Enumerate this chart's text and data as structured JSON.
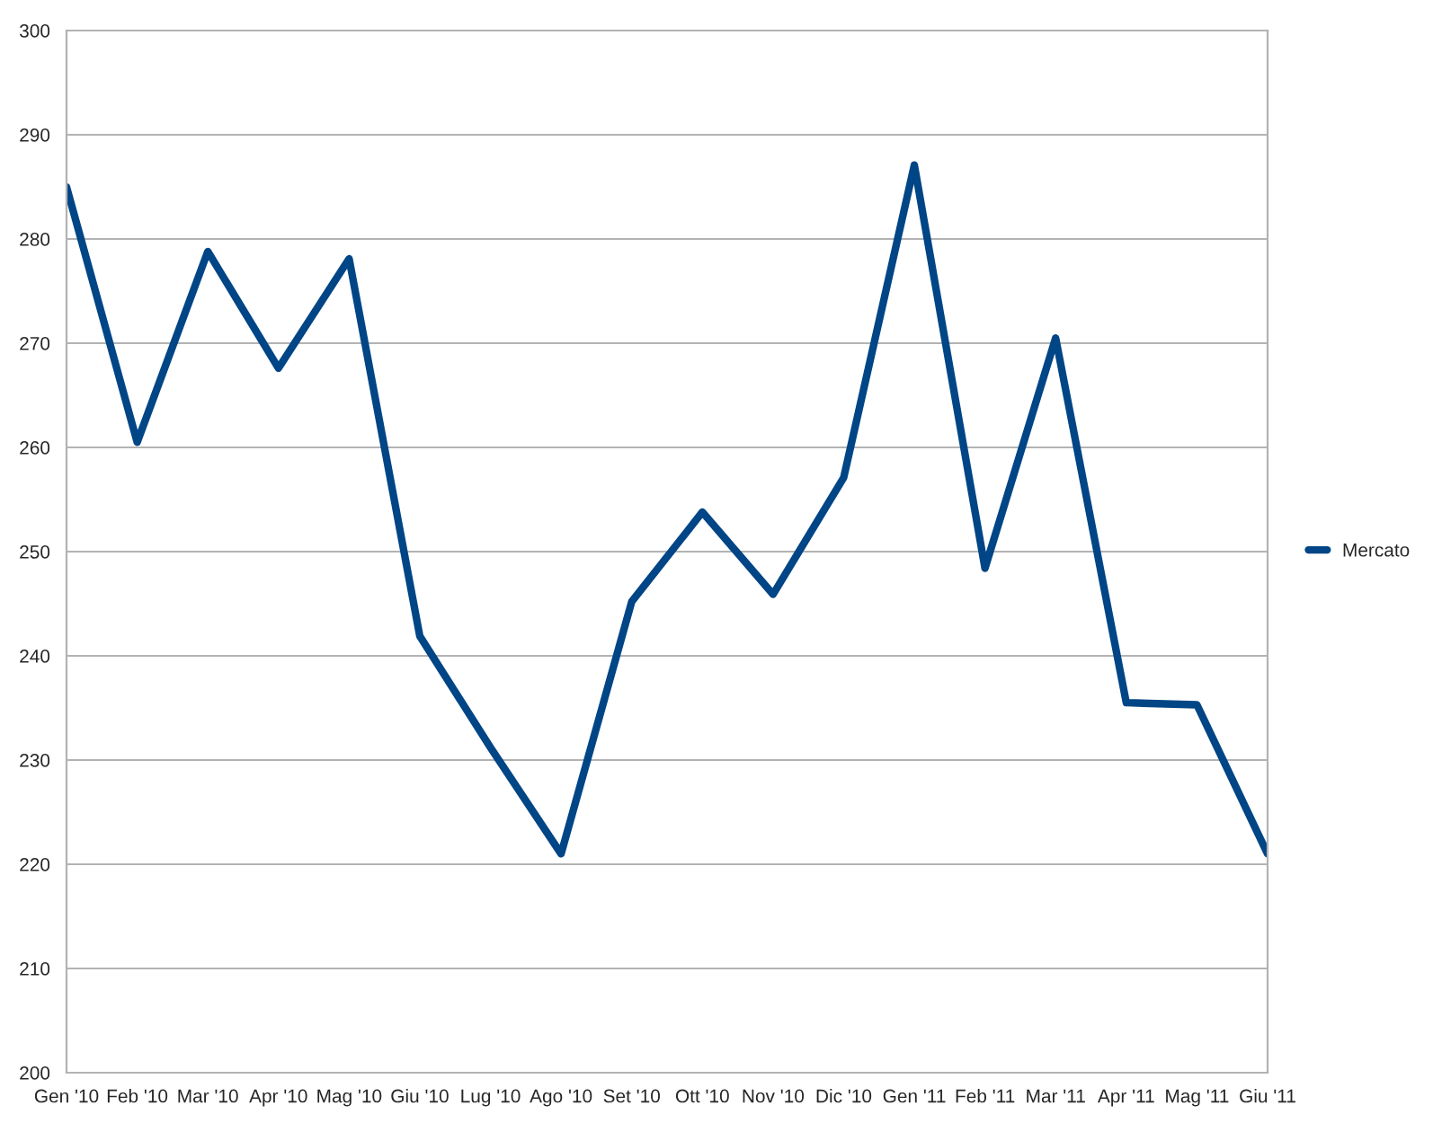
{
  "chart_data": {
    "type": "line",
    "categories": [
      "Gen '10",
      "Feb '10",
      "Mar '10",
      "Apr '10",
      "Mag '10",
      "Giu '10",
      "Lug '10",
      "Ago '10",
      "Set '10",
      "Ott '10",
      "Nov '10",
      "Dic '10",
      "Gen '11",
      "Feb '11",
      "Mar '11",
      "Apr '11",
      "Mag '11",
      "Giu '11"
    ],
    "series": [
      {
        "name": "Mercato",
        "color": "#004586",
        "values": [
          285,
          260.5,
          278.8,
          267.6,
          278.1,
          241.9,
          231.2,
          221,
          245.2,
          253.8,
          245.9,
          257.1,
          287.1,
          248.4,
          270.5,
          235.5,
          235.3,
          221
        ]
      }
    ],
    "ylim": [
      200,
      300
    ],
    "yticks": [
      200,
      210,
      220,
      230,
      240,
      250,
      260,
      270,
      280,
      290,
      300
    ],
    "grid": "y",
    "legend": "right",
    "marker": "none",
    "line_style": "solid"
  }
}
